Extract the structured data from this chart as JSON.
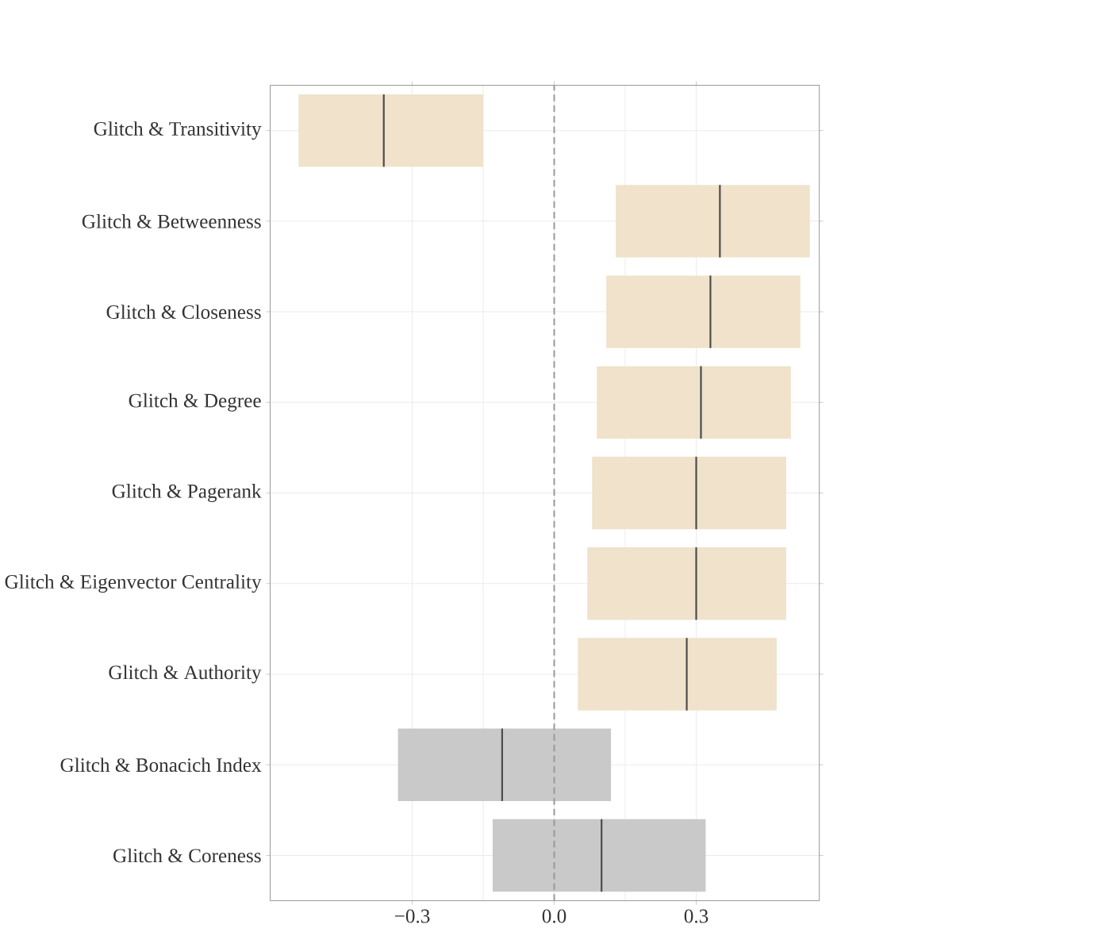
{
  "chart_data": {
    "type": "box",
    "orientation": "horizontal",
    "categories": [
      "Glitch & Transitivity",
      "Glitch & Betweenness",
      "Glitch & Closeness",
      "Glitch & Degree",
      "Glitch & Pagerank",
      "Glitch & Eigenvector Centrality",
      "Glitch & Authority",
      "Glitch & Bonacich Index",
      "Glitch & Coreness"
    ],
    "boxes": [
      {
        "low": -0.54,
        "q1": -0.54,
        "median": -0.36,
        "q3": -0.15,
        "high": -0.15
      },
      {
        "low": 0.13,
        "q1": 0.13,
        "median": 0.35,
        "q3": 0.54,
        "high": 0.54
      },
      {
        "low": 0.11,
        "q1": 0.11,
        "median": 0.33,
        "q3": 0.52,
        "high": 0.52
      },
      {
        "low": 0.09,
        "q1": 0.09,
        "median": 0.31,
        "q3": 0.5,
        "high": 0.5
      },
      {
        "low": 0.08,
        "q1": 0.08,
        "median": 0.3,
        "q3": 0.49,
        "high": 0.49
      },
      {
        "low": 0.07,
        "q1": 0.07,
        "median": 0.3,
        "q3": 0.49,
        "high": 0.49
      },
      {
        "low": 0.05,
        "q1": 0.05,
        "median": 0.28,
        "q3": 0.47,
        "high": 0.47
      },
      {
        "low": -0.33,
        "q1": -0.33,
        "median": -0.11,
        "q3": 0.12,
        "high": 0.12
      },
      {
        "low": -0.13,
        "q1": -0.13,
        "median": 0.1,
        "q3": 0.32,
        "high": 0.32
      }
    ],
    "colors": [
      "#f0e2cb",
      "#f0e2cb",
      "#f0e2cb",
      "#f0e2cb",
      "#f0e2cb",
      "#f0e2cb",
      "#f0e2cb",
      "#c9c9c9",
      "#c9c9c9"
    ],
    "xlim": [
      -0.6,
      0.56
    ],
    "xticks": [
      {
        "value": -0.3,
        "label": "−0.3"
      },
      {
        "value": 0,
        "label": "0.0"
      },
      {
        "value": 0.3,
        "label": "0.3"
      }
    ],
    "ref_lines": [
      {
        "axis": "x",
        "value": 0,
        "line_style": "dashed",
        "color": "#9a9a9a"
      }
    ],
    "grid": true
  }
}
